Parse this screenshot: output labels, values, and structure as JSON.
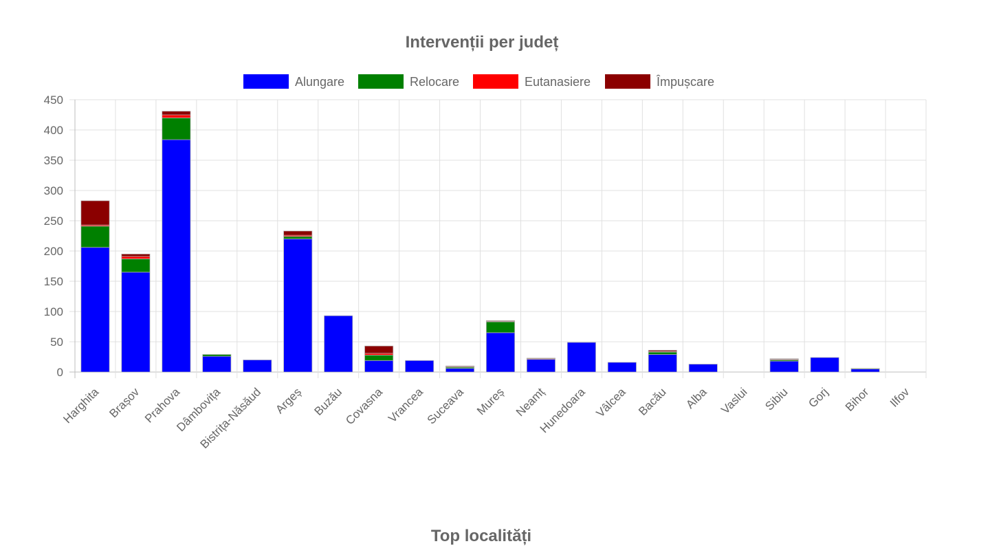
{
  "chart_data": {
    "type": "bar",
    "stacked": true,
    "title": "Intervenții per județ",
    "categories": [
      "Harghita",
      "Brașov",
      "Prahova",
      "Dâmbovița",
      "Bistrița-Năsăud",
      "Argeș",
      "Buzău",
      "Covasna",
      "Vrancea",
      "Suceava",
      "Mureș",
      "Neamț",
      "Hunedoara",
      "Vâlcea",
      "Bacău",
      "Alba",
      "Vaslui",
      "Sibiu",
      "Gorj",
      "Bihor",
      "Ilfov"
    ],
    "series": [
      {
        "name": "Alungare",
        "color": "#0000ff",
        "values": [
          206,
          165,
          384,
          26,
          20,
          220,
          93,
          19,
          19,
          6,
          65,
          21,
          49,
          16,
          29,
          13,
          0,
          18,
          24,
          5,
          0
        ]
      },
      {
        "name": "Relocare",
        "color": "#008000",
        "values": [
          35,
          22,
          36,
          3,
          0,
          4,
          0,
          9,
          0,
          2,
          18,
          0,
          0,
          0,
          4,
          0,
          0,
          2,
          0,
          1,
          0
        ]
      },
      {
        "name": "Eutanasiere",
        "color": "#ff0000",
        "values": [
          2,
          4,
          5,
          0,
          0,
          2,
          0,
          3,
          0,
          1,
          1,
          1,
          0,
          0,
          1,
          0,
          0,
          1,
          0,
          0,
          0
        ]
      },
      {
        "name": "Împușcare",
        "color": "#8b0000",
        "values": [
          40,
          4,
          6,
          0,
          0,
          7,
          0,
          12,
          0,
          1,
          1,
          1,
          0,
          0,
          2,
          0,
          0,
          1,
          0,
          0,
          0
        ]
      }
    ],
    "ylim": [
      0,
      450
    ],
    "yticks": [
      "0",
      "50",
      "100",
      "150",
      "200",
      "250",
      "300",
      "350",
      "400",
      "450"
    ],
    "legend_position": "top",
    "grid": true
  },
  "next_section": {
    "title": "Top localități"
  }
}
